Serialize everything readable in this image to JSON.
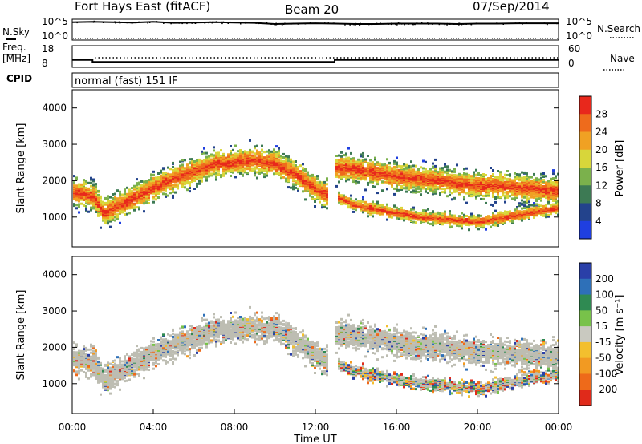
{
  "header": {
    "station": "Fort Hays East (fitACF)",
    "beam": "Beam 20",
    "date": "07/Sep/2014"
  },
  "summary_panels": {
    "nsky_label": "N.Sky",
    "nsearch_label": "N.Search",
    "noise_ticks_left": [
      "10^5",
      "10^0"
    ],
    "noise_ticks_right": [
      "10^5",
      "10^0"
    ],
    "freq_label": "Freq.",
    "freq_unit": "[MHz]",
    "freq_ticks": [
      "18",
      "8"
    ],
    "nave_label": "Nave",
    "nave_ticks": [
      "60",
      "0"
    ],
    "cpid_label": "CPID",
    "cpid_value": "normal (fast) 151 IF"
  },
  "colors": {
    "power_scale": [
      "#1f3fe0",
      "#23438c",
      "#3d7a54",
      "#7bb14c",
      "#d8d63a",
      "#f0a123",
      "#ee6b1c",
      "#e8281c"
    ],
    "velocity_scale": [
      "#2a3fa8",
      "#2e70b8",
      "#2f8a52",
      "#78c24a",
      "#c9c9c0",
      "#f3bf2e",
      "#f29a22",
      "#ee6a1a",
      "#e02a1a"
    ],
    "ground_scatter": "#bdbdb2"
  },
  "chart_data": [
    {
      "type": "line",
      "name": "noise",
      "series": [
        {
          "name": "N.Sky",
          "x_hours": [
            0,
            1,
            2,
            3,
            4,
            5,
            6,
            7,
            8,
            9,
            10,
            11,
            12,
            13,
            14,
            15,
            16,
            17,
            18,
            19,
            20,
            21,
            22,
            23,
            24
          ],
          "log10_values": [
            4.6,
            4.7,
            4.6,
            4.5,
            4.7,
            4.4,
            4.5,
            4.6,
            4.5,
            4.4,
            4.1,
            4.2,
            4.3,
            4.2,
            4.1,
            4.1,
            4.2,
            4.2,
            4.2,
            4.1,
            4.2,
            4.2,
            4.3,
            4.3,
            4.3
          ]
        },
        {
          "name": "N.Search",
          "x_hours": [
            0,
            24
          ],
          "log10_values": [
            0,
            0
          ]
        }
      ],
      "ylim_log10": [
        0,
        5
      ]
    },
    {
      "type": "line",
      "name": "frequency_nave",
      "series": [
        {
          "name": "Freq.",
          "x_hours": [
            0,
            1.0,
            1.0,
            12.95,
            12.95,
            24
          ],
          "values_mhz": [
            11.5,
            11.5,
            10.3,
            10.3,
            11.5,
            11.5
          ]
        },
        {
          "name": "Nave",
          "x_hours": [
            0,
            24
          ],
          "values": [
            19,
            19
          ]
        }
      ]
    },
    {
      "type": "heatmap",
      "name": "power",
      "xlabel": "",
      "ylabel": "Slant Range [km]",
      "xlim_hours": [
        0,
        24
      ],
      "ylim_km": [
        180,
        4500
      ],
      "yticks": [
        "1000",
        "2000",
        "3000",
        "4000"
      ],
      "colorbar_label": "Power [dB]",
      "colorbar_ticks": [
        "4",
        "8",
        "12",
        "16",
        "20",
        "24",
        "28"
      ],
      "colorbar_range": [
        0,
        30
      ],
      "band_centers_km": {
        "hours": [
          0,
          0.5,
          1.0,
          1.5,
          2,
          3,
          4,
          5,
          6,
          7,
          8,
          9,
          10,
          11,
          12,
          12.5,
          13,
          14,
          15,
          16,
          17,
          18,
          19,
          20,
          21,
          22,
          23,
          24
        ],
        "main": [
          1700,
          1680,
          1600,
          1150,
          1300,
          1550,
          1850,
          2100,
          2300,
          2500,
          2550,
          2600,
          2500,
          2200,
          1800,
          1650,
          2400,
          2350,
          2250,
          2150,
          2100,
          2050,
          1950,
          1900,
          1900,
          1850,
          1800,
          1750
        ],
        "secondary": [
          null,
          null,
          null,
          null,
          null,
          null,
          null,
          null,
          null,
          null,
          null,
          null,
          null,
          null,
          null,
          null,
          1600,
          1350,
          1250,
          1150,
          1050,
          1000,
          950,
          900,
          1000,
          1100,
          1200,
          1300
        ]
      }
    },
    {
      "type": "heatmap",
      "name": "velocity",
      "xlabel": "Time UT",
      "ylabel": "Slant Range [km]",
      "xlim_hours": [
        0,
        24
      ],
      "ylim_km": [
        180,
        4500
      ],
      "xticks": [
        "00:00",
        "04:00",
        "08:00",
        "12:00",
        "16:00",
        "20:00",
        "00:00"
      ],
      "yticks": [
        "1000",
        "2000",
        "3000",
        "4000"
      ],
      "colorbar_label": "Velocity [m s⁻¹]",
      "colorbar_ticks": [
        "200",
        "100",
        "50",
        "15",
        "-15",
        "-50",
        "-100",
        "-200"
      ],
      "colorbar_range": [
        -250,
        250
      ]
    }
  ]
}
